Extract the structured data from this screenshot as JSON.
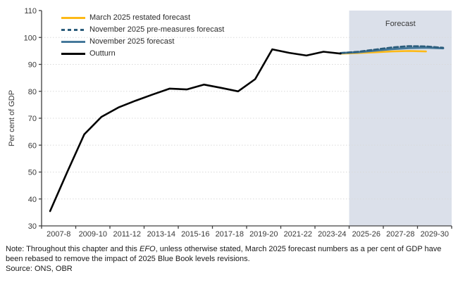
{
  "colors": {
    "forecast_band": "#dbe0ea",
    "gridline": "#d9d9d9",
    "axis": "#404040",
    "march_yellow": "#fdb917",
    "nov_pre_dashed": "#2c5d7c",
    "nov_solid": "#46799b",
    "outturn_black": "#000000"
  },
  "chart_data": {
    "type": "line",
    "title": "",
    "ylabel": "Per cent of GDP",
    "ylim": [
      30,
      110
    ],
    "ytick_step": 10,
    "grid": "horizontal-dotted",
    "legend_position": "top-left-inside",
    "x_categories": [
      "2007-08",
      "2008-09",
      "2009-10",
      "2010-11",
      "2011-12",
      "2012-13",
      "2013-14",
      "2014-15",
      "2015-16",
      "2016-17",
      "2017-18",
      "2018-19",
      "2019-20",
      "2020-21",
      "2021-22",
      "2022-23",
      "2023-24",
      "2024-25",
      "2025-26",
      "2026-27",
      "2027-28",
      "2028-29",
      "2029-30",
      "2030-31"
    ],
    "x_tick_labels": [
      "2007-8",
      "2009-10",
      "2011-12",
      "2013-14",
      "2015-16",
      "2017-18",
      "2019-20",
      "2021-22",
      "2023-24",
      "2025-26",
      "2027-28",
      "2029-30"
    ],
    "forecast_band": {
      "label": "Forecast",
      "start_index": 18
    },
    "draw_order": [
      0,
      2,
      1,
      3
    ],
    "series": [
      {
        "id": "march-restated",
        "name": "March 2025 restated forecast",
        "color": "#fdb917",
        "style": "solid",
        "width": 2.6,
        "start_index": 17,
        "values": [
          94.0,
          94.2,
          94.5,
          94.8,
          95.0,
          94.8
        ]
      },
      {
        "id": "nov-pre-measures",
        "name": "November 2025 pre-measures forecast",
        "color": "#2c5d7c",
        "style": "dashed",
        "width": 2.6,
        "start_index": 17,
        "values": [
          94.2,
          94.7,
          95.5,
          96.3,
          96.8,
          96.7,
          96.2
        ]
      },
      {
        "id": "nov-forecast",
        "name": "November 2025 forecast",
        "color": "#46799b",
        "style": "solid",
        "width": 3,
        "start_index": 17,
        "values": [
          94.2,
          94.5,
          95.1,
          95.7,
          96.1,
          96.2,
          96.0
        ]
      },
      {
        "id": "outturn",
        "name": "Outturn",
        "color": "#000000",
        "style": "solid",
        "width": 2.6,
        "start_index": 0,
        "values": [
          35.5,
          50.0,
          64.0,
          70.5,
          74.0,
          76.5,
          78.8,
          81.0,
          80.7,
          82.5,
          81.3,
          80.0,
          84.5,
          95.6,
          94.3,
          93.3,
          94.7,
          94.0
        ]
      }
    ]
  },
  "note": {
    "prefix": "Note: Throughout this chapter and this ",
    "efo": "EFO",
    "suffix": ", unless otherwise stated, March 2025 forecast numbers as a per cent of GDP have been rebased to remove the impact of 2025 Blue Book levels revisions."
  },
  "source": "Source: ONS, OBR"
}
